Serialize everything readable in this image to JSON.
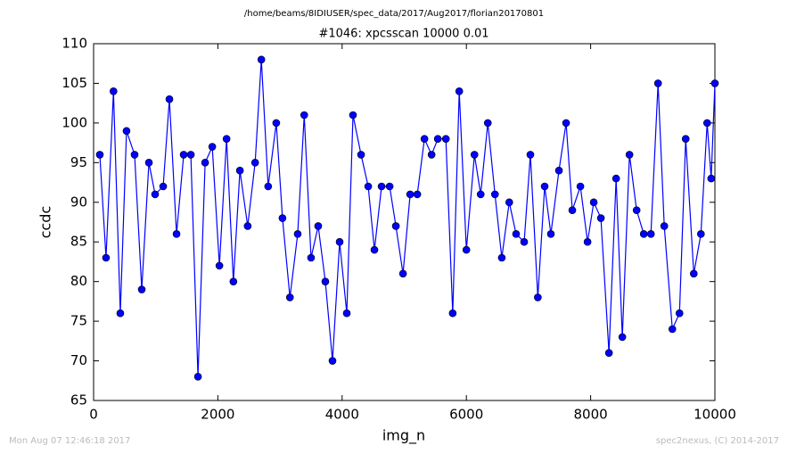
{
  "chart_data": {
    "type": "line",
    "title": "/home/beams/8IDIUSER/spec_data/2017/Aug2017/florian20170801",
    "subtitle": "#1046: xpcsscan 10000 0.01",
    "xlabel": "img_n",
    "ylabel": "ccdc",
    "annotations": [
      "Mon Aug 07 12:46:18 2017",
      "spec2nexus, (C) 2014-2017"
    ],
    "x": [
      100,
      200,
      320,
      430,
      530,
      660,
      775,
      890,
      990,
      1120,
      1220,
      1335,
      1450,
      1565,
      1680,
      1795,
      1910,
      2025,
      2140,
      2250,
      2355,
      2480,
      2600,
      2700,
      2810,
      2940,
      3040,
      3160,
      3285,
      3390,
      3500,
      3615,
      3730,
      3845,
      3960,
      4075,
      4175,
      4305,
      4420,
      4520,
      4635,
      4765,
      4865,
      4980,
      5095,
      5210,
      5325,
      5440,
      5540,
      5670,
      5780,
      5885,
      6000,
      6130,
      6230,
      6345,
      6460,
      6570,
      6690,
      6800,
      6930,
      7030,
      7150,
      7260,
      7360,
      7490,
      7605,
      7705,
      7835,
      7950,
      8050,
      8165,
      8295,
      8410,
      8510,
      8625,
      8740,
      8855,
      8970,
      9085,
      9185,
      9315,
      9430,
      9530,
      9660,
      9775,
      9875,
      9940,
      10000
    ],
    "series": [
      {
        "name": "ccdc",
        "color": "#0000ff",
        "values": [
          96,
          83,
          104,
          76,
          99,
          96,
          79,
          95,
          91,
          92,
          103,
          86,
          96,
          96,
          68,
          95,
          97,
          82,
          98,
          80,
          94,
          87,
          95,
          108,
          92,
          100,
          88,
          78,
          86,
          101,
          83,
          87,
          80,
          70,
          85,
          76,
          101,
          96,
          92,
          84,
          92,
          92,
          87,
          81,
          91,
          91,
          98,
          96,
          98,
          98,
          76,
          104,
          84,
          96,
          91,
          100,
          91,
          83,
          90,
          86,
          85,
          96,
          78,
          92,
          86,
          94,
          100,
          89,
          92,
          85,
          90,
          88,
          71,
          93,
          73,
          96,
          89,
          86,
          86,
          105,
          87,
          74,
          76,
          98,
          81,
          86,
          100,
          93,
          105
        ]
      }
    ],
    "xlim": [
      0,
      10000
    ],
    "ylim": [
      65,
      110
    ],
    "xticks": [
      0,
      2000,
      4000,
      6000,
      8000,
      10000
    ],
    "yticks": [
      65,
      70,
      75,
      80,
      85,
      90,
      95,
      100,
      105,
      110
    ]
  }
}
